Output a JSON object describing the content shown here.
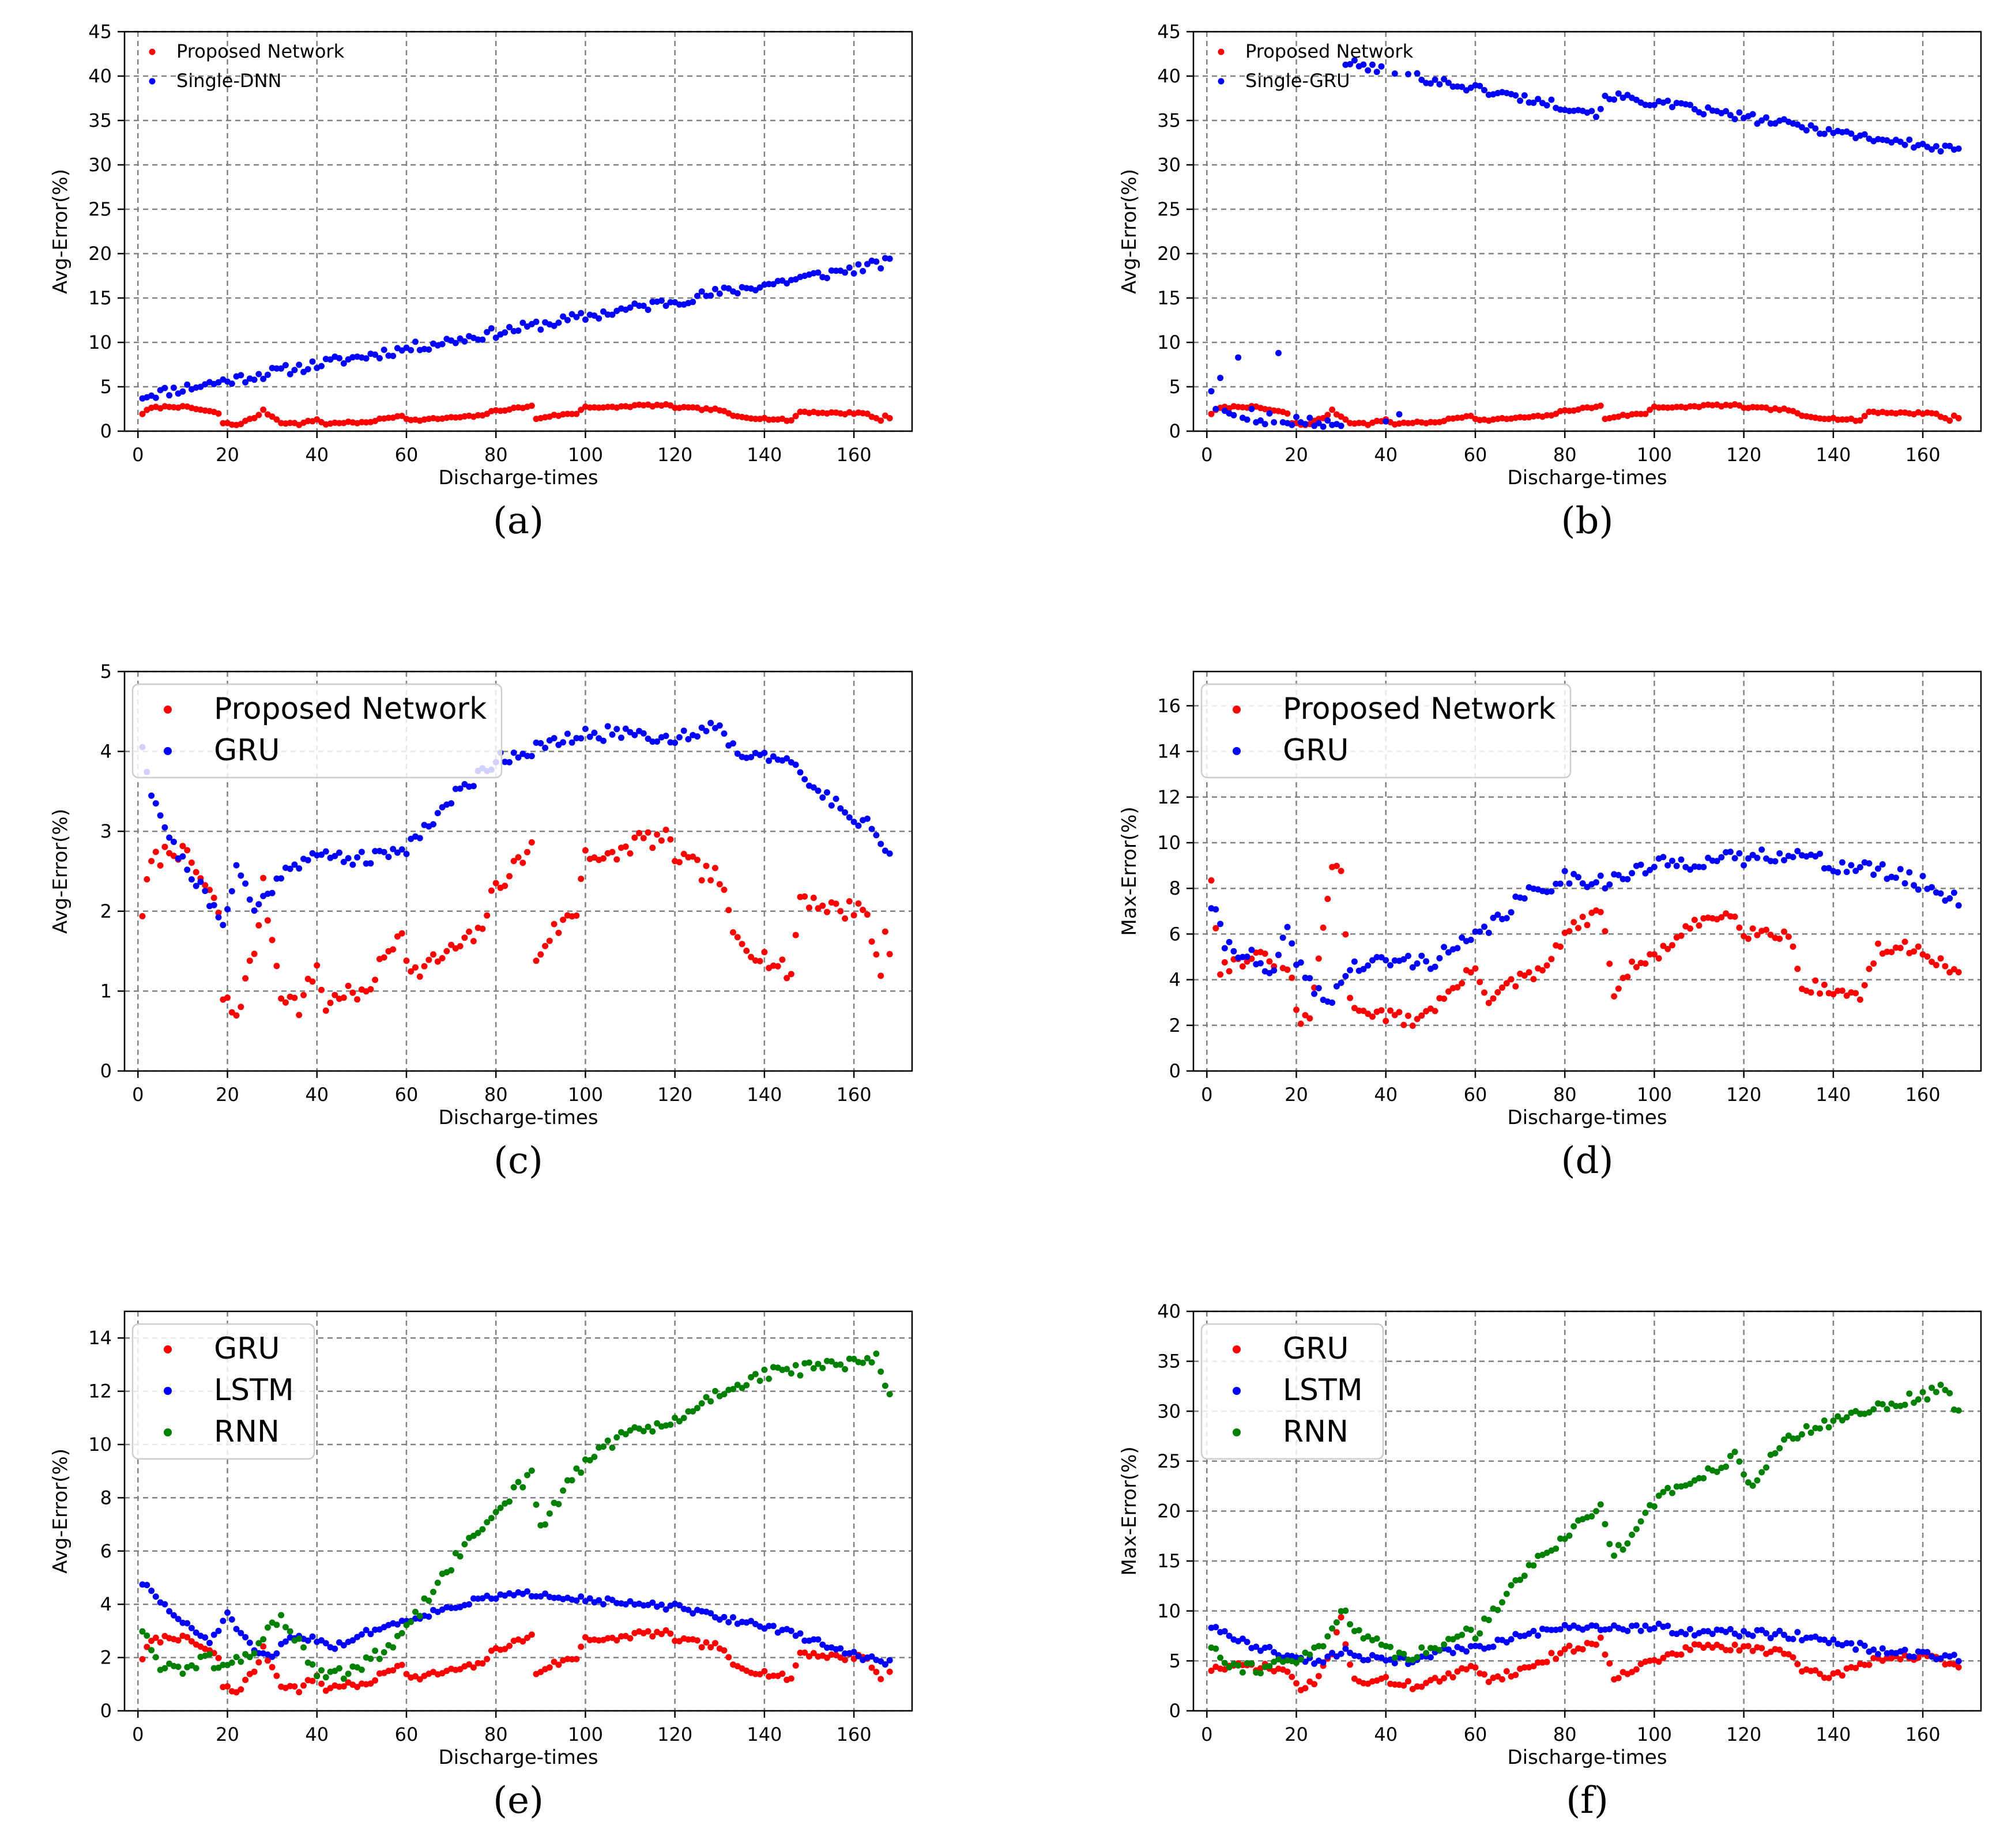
{
  "colors": {
    "red": "#ff0000",
    "blue": "#0000ff",
    "green": "#008000",
    "grid": "#808080"
  },
  "chart_data": [
    {
      "id": "a",
      "type": "scatter",
      "caption": "(a)",
      "xlabel": "Discharge-times",
      "ylabel": "Avg-Error(%)",
      "xlim": [
        -3,
        173
      ],
      "ylim": [
        0,
        45
      ],
      "xticks": [
        0,
        20,
        40,
        60,
        80,
        100,
        120,
        140,
        160
      ],
      "yticks": [
        0,
        5,
        10,
        15,
        20,
        25,
        30,
        35,
        40,
        45
      ],
      "legend_position": "upper-left",
      "legend_style": "small",
      "series": [
        {
          "name": "Proposed Network",
          "color": "red",
          "gen": "proposed"
        },
        {
          "name": "Single-DNN",
          "color": "blue",
          "gen": "line",
          "start": 4.0,
          "end": 19.0,
          "noise": 0.6,
          "seed": 11
        }
      ]
    },
    {
      "id": "b",
      "type": "scatter",
      "caption": "(b)",
      "xlabel": "Discharge-times",
      "ylabel": "Avg-Error(%)",
      "xlim": [
        -3,
        173
      ],
      "ylim": [
        0,
        45
      ],
      "xticks": [
        0,
        20,
        40,
        60,
        80,
        100,
        120,
        140,
        160
      ],
      "yticks": [
        0,
        5,
        10,
        15,
        20,
        25,
        30,
        35,
        40,
        45
      ],
      "legend_position": "upper-left",
      "legend_style": "small",
      "series": [
        {
          "name": "Proposed Network",
          "color": "red",
          "gen": "proposed"
        },
        {
          "name": "Single-GRU",
          "color": "blue",
          "gen": "singlegru"
        }
      ]
    },
    {
      "id": "c",
      "type": "scatter",
      "caption": "(c)",
      "xlabel": "Discharge-times",
      "ylabel": "Avg-Error(%)",
      "xlim": [
        -3,
        173
      ],
      "ylim": [
        0,
        5
      ],
      "xticks": [
        0,
        20,
        40,
        60,
        80,
        100,
        120,
        140,
        160
      ],
      "yticks": [
        0,
        1,
        2,
        3,
        4,
        5
      ],
      "legend_position": "upper-left",
      "legend_style": "large",
      "series": [
        {
          "name": "Proposed Network",
          "color": "red",
          "gen": "proposed"
        },
        {
          "name": "GRU",
          "color": "blue",
          "gen": "keys",
          "noise": 0.09,
          "seed": 21,
          "keys": [
            [
              1,
              4.1
            ],
            [
              3,
              3.5
            ],
            [
              8,
              2.8
            ],
            [
              14,
              2.3
            ],
            [
              19,
              1.8
            ],
            [
              22,
              2.6
            ],
            [
              26,
              2.0
            ],
            [
              30,
              2.3
            ],
            [
              34,
              2.6
            ],
            [
              42,
              2.7
            ],
            [
              52,
              2.65
            ],
            [
              60,
              2.8
            ],
            [
              70,
              3.4
            ],
            [
              80,
              3.9
            ],
            [
              90,
              4.05
            ],
            [
              100,
              4.2
            ],
            [
              110,
              4.25
            ],
            [
              120,
              4.15
            ],
            [
              130,
              4.35
            ],
            [
              134,
              3.95
            ],
            [
              140,
              4.0
            ],
            [
              146,
              3.8
            ],
            [
              152,
              3.5
            ],
            [
              160,
              3.2
            ],
            [
              165,
              3.0
            ],
            [
              168,
              2.7
            ]
          ]
        }
      ]
    },
    {
      "id": "d",
      "type": "scatter",
      "caption": "(d)",
      "xlabel": "Discharge-times",
      "ylabel": "Max-Error(%)",
      "xlim": [
        -3,
        173
      ],
      "ylim": [
        0,
        17.5
      ],
      "xticks": [
        0,
        20,
        40,
        60,
        80,
        100,
        120,
        140,
        160
      ],
      "yticks": [
        0,
        2,
        4,
        6,
        8,
        10,
        12,
        14,
        16
      ],
      "legend_position": "upper-left",
      "legend_style": "large",
      "series": [
        {
          "name": "Proposed Network",
          "color": "red",
          "gen": "keys",
          "noise": 0.3,
          "seed": 31,
          "keys": [
            [
              1,
              8.5
            ],
            [
              3,
              4.5
            ],
            [
              10,
              5.0
            ],
            [
              16,
              4.8
            ],
            [
              19,
              4.0
            ],
            [
              21,
              1.8
            ],
            [
              23,
              2.5
            ],
            [
              26,
              6.0
            ],
            [
              28,
              9.0
            ],
            [
              30,
              8.9
            ],
            [
              32,
              3.0
            ],
            [
              38,
              2.5
            ],
            [
              46,
              2.2
            ],
            [
              52,
              3.0
            ],
            [
              60,
              4.5
            ],
            [
              63,
              3.2
            ],
            [
              70,
              4.0
            ],
            [
              75,
              4.3
            ],
            [
              80,
              6.0
            ],
            [
              88,
              7.0
            ],
            [
              91,
              3.5
            ],
            [
              95,
              4.5
            ],
            [
              100,
              5.0
            ],
            [
              110,
              6.5
            ],
            [
              118,
              7.0
            ],
            [
              120,
              6.1
            ],
            [
              130,
              6.0
            ],
            [
              133,
              3.8
            ],
            [
              140,
              3.5
            ],
            [
              146,
              3.3
            ],
            [
              150,
              5.3
            ],
            [
              160,
              5.4
            ],
            [
              165,
              4.5
            ],
            [
              168,
              4.4
            ]
          ]
        },
        {
          "name": "GRU",
          "color": "blue",
          "gen": "keys",
          "noise": 0.35,
          "seed": 41,
          "keys": [
            [
              1,
              7.3
            ],
            [
              4,
              5.6
            ],
            [
              10,
              5.0
            ],
            [
              14,
              4.0
            ],
            [
              18,
              6.0
            ],
            [
              22,
              4.0
            ],
            [
              27,
              3.0
            ],
            [
              32,
              4.5
            ],
            [
              40,
              4.8
            ],
            [
              50,
              4.8
            ],
            [
              60,
              5.8
            ],
            [
              70,
              7.5
            ],
            [
              80,
              8.5
            ],
            [
              90,
              8.3
            ],
            [
              100,
              9.0
            ],
            [
              110,
              9.2
            ],
            [
              120,
              9.3
            ],
            [
              130,
              9.6
            ],
            [
              140,
              9.0
            ],
            [
              150,
              8.8
            ],
            [
              160,
              8.2
            ],
            [
              168,
              7.5
            ]
          ]
        }
      ]
    },
    {
      "id": "e",
      "type": "scatter",
      "caption": "(e)",
      "xlabel": "Discharge-times",
      "ylabel": "Avg-Error(%)",
      "xlim": [
        -3,
        173
      ],
      "ylim": [
        0,
        15
      ],
      "xticks": [
        0,
        20,
        40,
        60,
        80,
        100,
        120,
        140,
        160
      ],
      "yticks": [
        0,
        2,
        4,
        6,
        8,
        10,
        12,
        14
      ],
      "legend_position": "upper-left",
      "legend_style": "large",
      "series": [
        {
          "name": "GRU",
          "color": "red",
          "gen": "proposed"
        },
        {
          "name": "LSTM",
          "color": "blue",
          "gen": "keys",
          "noise": 0.12,
          "seed": 51,
          "keys": [
            [
              1,
              4.8
            ],
            [
              5,
              4.1
            ],
            [
              10,
              3.3
            ],
            [
              16,
              2.6
            ],
            [
              20,
              3.6
            ],
            [
              26,
              2.2
            ],
            [
              30,
              2.0
            ],
            [
              34,
              2.8
            ],
            [
              40,
              2.7
            ],
            [
              44,
              2.4
            ],
            [
              52,
              3.0
            ],
            [
              60,
              3.4
            ],
            [
              70,
              3.9
            ],
            [
              80,
              4.3
            ],
            [
              90,
              4.4
            ],
            [
              100,
              4.2
            ],
            [
              110,
              4.0
            ],
            [
              120,
              3.9
            ],
            [
              130,
              3.5
            ],
            [
              140,
              3.2
            ],
            [
              150,
              2.7
            ],
            [
              160,
              2.1
            ],
            [
              168,
              1.8
            ]
          ]
        },
        {
          "name": "RNN",
          "color": "green",
          "gen": "keys",
          "noise": 0.25,
          "seed": 61,
          "keys": [
            [
              1,
              3.1
            ],
            [
              4,
              1.8
            ],
            [
              10,
              1.6
            ],
            [
              16,
              1.9
            ],
            [
              20,
              1.6
            ],
            [
              26,
              2.3
            ],
            [
              32,
              3.6
            ],
            [
              36,
              2.5
            ],
            [
              40,
              1.3
            ],
            [
              46,
              1.4
            ],
            [
              52,
              1.9
            ],
            [
              58,
              2.6
            ],
            [
              62,
              3.5
            ],
            [
              70,
              5.5
            ],
            [
              80,
              7.5
            ],
            [
              88,
              9.0
            ],
            [
              90,
              6.8
            ],
            [
              96,
              8.5
            ],
            [
              104,
              10.0
            ],
            [
              112,
              10.5
            ],
            [
              120,
              10.8
            ],
            [
              130,
              12.0
            ],
            [
              140,
              12.6
            ],
            [
              150,
              12.9
            ],
            [
              160,
              13.0
            ],
            [
              165,
              13.2
            ],
            [
              168,
              11.8
            ]
          ]
        }
      ]
    },
    {
      "id": "f",
      "type": "scatter",
      "caption": "(f)",
      "xlabel": "Discharge-times",
      "ylabel": "Max-Error(%)",
      "xlim": [
        -3,
        173
      ],
      "ylim": [
        0,
        40
      ],
      "xticks": [
        0,
        20,
        40,
        60,
        80,
        100,
        120,
        140,
        160
      ],
      "yticks": [
        0,
        5,
        10,
        15,
        20,
        25,
        30,
        35,
        40
      ],
      "legend_position": "upper-left",
      "legend_style": "large",
      "series": [
        {
          "name": "GRU",
          "color": "red",
          "gen": "keys",
          "noise": 0.4,
          "seed": 71,
          "keys": [
            [
              1,
              4.2
            ],
            [
              10,
              4.5
            ],
            [
              18,
              4.0
            ],
            [
              21,
              2.0
            ],
            [
              24,
              2.8
            ],
            [
              28,
              6.0
            ],
            [
              30,
              9.0
            ],
            [
              33,
              3.0
            ],
            [
              40,
              3.0
            ],
            [
              46,
              2.5
            ],
            [
              55,
              3.5
            ],
            [
              60,
              4.5
            ],
            [
              63,
              3.2
            ],
            [
              70,
              4.0
            ],
            [
              80,
              6.0
            ],
            [
              88,
              7.0
            ],
            [
              91,
              3.5
            ],
            [
              100,
              5.0
            ],
            [
              110,
              6.5
            ],
            [
              120,
              6.2
            ],
            [
              130,
              6.0
            ],
            [
              133,
              3.8
            ],
            [
              140,
              3.5
            ],
            [
              150,
              5.3
            ],
            [
              160,
              5.4
            ],
            [
              168,
              4.4
            ]
          ]
        },
        {
          "name": "LSTM",
          "color": "blue",
          "gen": "keys",
          "noise": 0.4,
          "seed": 81,
          "keys": [
            [
              1,
              8.5
            ],
            [
              10,
              6.5
            ],
            [
              18,
              5.5
            ],
            [
              25,
              5.0
            ],
            [
              30,
              6.0
            ],
            [
              36,
              5.2
            ],
            [
              44,
              5.0
            ],
            [
              52,
              5.8
            ],
            [
              60,
              6.3
            ],
            [
              70,
              7.5
            ],
            [
              80,
              8.2
            ],
            [
              90,
              8.3
            ],
            [
              100,
              8.4
            ],
            [
              110,
              7.8
            ],
            [
              120,
              7.8
            ],
            [
              130,
              7.6
            ],
            [
              140,
              7.0
            ],
            [
              150,
              6.0
            ],
            [
              160,
              5.6
            ],
            [
              168,
              5.2
            ]
          ]
        },
        {
          "name": "RNN",
          "color": "green",
          "gen": "keys",
          "noise": 0.6,
          "seed": 91,
          "keys": [
            [
              1,
              6.6
            ],
            [
              6,
              4.5
            ],
            [
              12,
              4.3
            ],
            [
              20,
              5.0
            ],
            [
              26,
              6.5
            ],
            [
              30,
              10.2
            ],
            [
              34,
              8.0
            ],
            [
              40,
              6.0
            ],
            [
              46,
              5.6
            ],
            [
              52,
              6.2
            ],
            [
              56,
              8.0
            ],
            [
              60,
              7.6
            ],
            [
              62,
              9.0
            ],
            [
              70,
              13.5
            ],
            [
              80,
              17.5
            ],
            [
              88,
              20.5
            ],
            [
              91,
              15.5
            ],
            [
              100,
              21.0
            ],
            [
              106,
              22.5
            ],
            [
              112,
              24.0
            ],
            [
              118,
              25.5
            ],
            [
              121,
              22.5
            ],
            [
              128,
              26.5
            ],
            [
              134,
              28.0
            ],
            [
              140,
              29.0
            ],
            [
              150,
              30.5
            ],
            [
              160,
              31.5
            ],
            [
              165,
              32.5
            ],
            [
              168,
              29.5
            ]
          ]
        }
      ]
    }
  ]
}
